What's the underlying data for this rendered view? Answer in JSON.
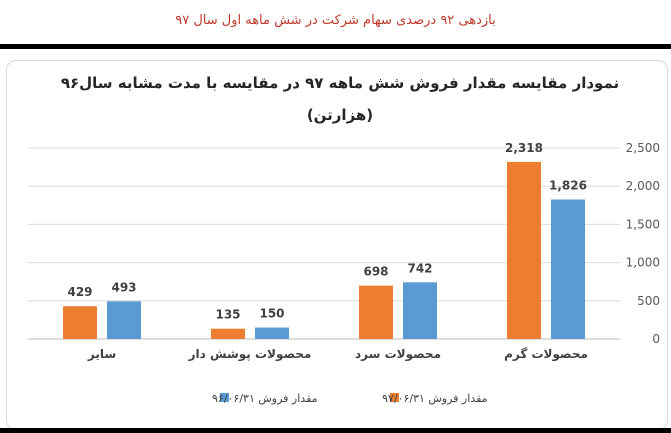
{
  "banner": {
    "text": "بازدهی ۹۲ درصدی سهام شرکت در شش ماهه اول سال ۹۷"
  },
  "chart_data": {
    "type": "bar",
    "title": "نمودار مقایسه مقدار فروش شش ماهه ۹۷ در مقایسه با مدت مشابه سال۹۶",
    "subtitle": "(هزارتن)",
    "categories": [
      "سایر",
      "محصولات پوشش دار",
      "محصولات سرد",
      "محصولات گرم"
    ],
    "series": [
      {
        "name": "مقدار فروش ۹۷/۰۶/۳۱",
        "color": "#ed7d31",
        "values": [
          429,
          135,
          698,
          2318
        ]
      },
      {
        "name": "مقدار فروش ۹۶/۰۶/۳۱",
        "color": "#5b9bd5",
        "values": [
          493,
          150,
          742,
          1826
        ]
      }
    ],
    "y_ticks": [
      "0",
      "500",
      "1,000",
      "1,500",
      "2,000",
      "2,500"
    ],
    "data_labels": [
      [
        "429",
        "135",
        "698",
        "2,318"
      ],
      [
        "493",
        "150",
        "742",
        "1,826"
      ]
    ],
    "ylim": [
      0,
      2500
    ],
    "axis_side": "right",
    "grid": true,
    "legend_position": "bottom"
  }
}
